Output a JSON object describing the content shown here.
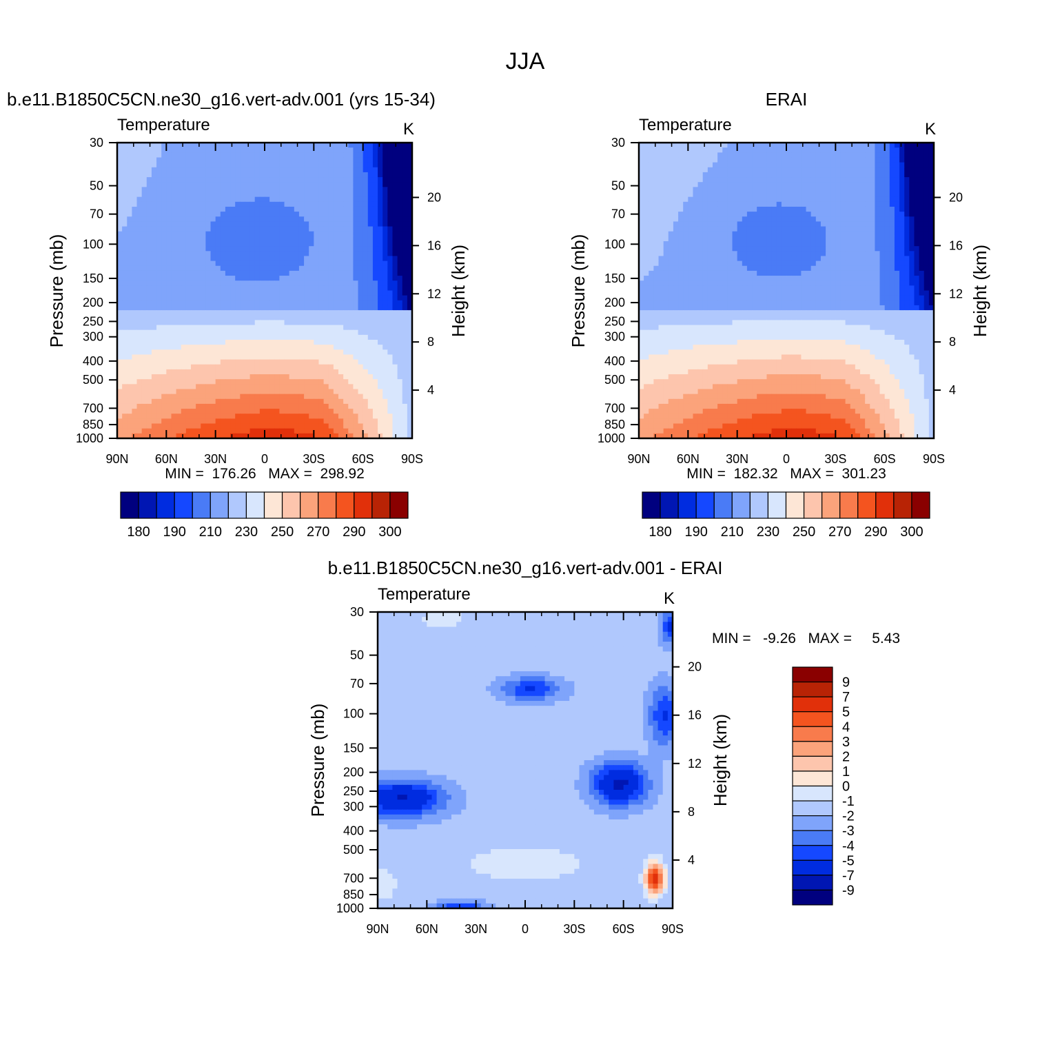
{
  "figure": {
    "title": "JJA"
  },
  "palette": {
    "full": [
      "#00007f",
      "#0016b3",
      "#002ce0",
      "#1548ff",
      "#4a7bf6",
      "#7fa4fb",
      "#b0c8fd",
      "#d8e6fd",
      "#fde6d6",
      "#fdc5ad",
      "#fba37b",
      "#f87b4c",
      "#f4541f",
      "#e1300a",
      "#b82305",
      "#8a0000"
    ],
    "diff": [
      "#00007f",
      "#0016b3",
      "#002ce0",
      "#1548ff",
      "#4a7bf6",
      "#7fa4fb",
      "#b0c8fd",
      "#d8e6fd",
      "#fde6d6",
      "#fdc5ad",
      "#fba37b",
      "#f87b4c",
      "#f4541f",
      "#e1300a",
      "#b82305",
      "#8a0000"
    ]
  },
  "chart_data": [
    {
      "type": "heatmap",
      "id": "model",
      "title": "b.e11.B1850C5CN.ne30_g16.vert-adv.001 (yrs 15-34)",
      "subtitle_left": "Temperature",
      "units": "K",
      "xlabel": "",
      "ylabel": "Pressure (mb)",
      "ylabel_right": "Height (km)",
      "x_ticks": [
        "90N",
        "60N",
        "30N",
        "0",
        "30S",
        "60S",
        "90S"
      ],
      "x_range": [
        90,
        -90
      ],
      "y_ticks": [
        30,
        50,
        70,
        100,
        150,
        200,
        250,
        300,
        400,
        500,
        700,
        850,
        1000
      ],
      "y_range": [
        30,
        1000
      ],
      "y_scale": "log",
      "height_ticks": [
        20,
        16,
        12,
        8,
        4
      ],
      "min_label": "MIN =  176.26   MAX =  298.92",
      "levels": [
        180,
        185,
        190,
        200,
        210,
        220,
        230,
        240,
        250,
        260,
        270,
        280,
        290,
        295,
        300
      ],
      "colorbar_labels": [
        "180",
        "190",
        "210",
        "230",
        "250",
        "270",
        "290",
        "300"
      ],
      "field": {
        "kind": "abs",
        "min": 176.26,
        "max": 298.92,
        "bias": 0
      }
    },
    {
      "type": "heatmap",
      "id": "obs",
      "title": "ERAI",
      "subtitle_left": "Temperature",
      "units": "K",
      "xlabel": "",
      "ylabel": "Pressure (mb)",
      "ylabel_right": "Height (km)",
      "x_ticks": [
        "90N",
        "60N",
        "30N",
        "0",
        "30S",
        "60S",
        "90S"
      ],
      "x_range": [
        90,
        -90
      ],
      "y_ticks": [
        30,
        50,
        70,
        100,
        150,
        200,
        250,
        300,
        400,
        500,
        700,
        850,
        1000
      ],
      "y_range": [
        30,
        1000
      ],
      "y_scale": "log",
      "height_ticks": [
        20,
        16,
        12,
        8,
        4
      ],
      "min_label": "MIN =  182.32   MAX =  301.23",
      "levels": [
        180,
        185,
        190,
        200,
        210,
        220,
        230,
        240,
        250,
        260,
        270,
        280,
        290,
        295,
        300
      ],
      "colorbar_labels": [
        "180",
        "190",
        "210",
        "230",
        "250",
        "270",
        "290",
        "300"
      ],
      "field": {
        "kind": "abs",
        "min": 182.32,
        "max": 301.23,
        "bias": 3
      }
    },
    {
      "type": "heatmap",
      "id": "diff",
      "title": "b.e11.B1850C5CN.ne30_g16.vert-adv.001 - ERAI",
      "subtitle_left": "Temperature",
      "units": "K",
      "xlabel": "",
      "ylabel": "Pressure (mb)",
      "ylabel_right": "Height (km)",
      "x_ticks": [
        "90N",
        "60N",
        "30N",
        "0",
        "30S",
        "60S",
        "90S"
      ],
      "x_range": [
        90,
        -90
      ],
      "y_ticks": [
        30,
        50,
        70,
        100,
        150,
        200,
        250,
        300,
        400,
        500,
        700,
        850,
        1000
      ],
      "y_range": [
        30,
        1000
      ],
      "y_scale": "log",
      "height_ticks": [
        20,
        16,
        12,
        8,
        4
      ],
      "min_label": "MIN =   -9.26   MAX =     5.43",
      "levels": [
        -9,
        -7,
        -5,
        -4,
        -3,
        -2,
        -1,
        0,
        1,
        2,
        3,
        4,
        5,
        7,
        9
      ],
      "colorbar_labels": [
        "9",
        "7",
        "5",
        "4",
        "3",
        "2",
        "1",
        "0",
        "-1",
        "-2",
        "-3",
        "-4",
        "-5",
        "-7",
        "-9"
      ],
      "field": {
        "kind": "diff",
        "min": -9.26,
        "max": 5.43
      }
    }
  ]
}
